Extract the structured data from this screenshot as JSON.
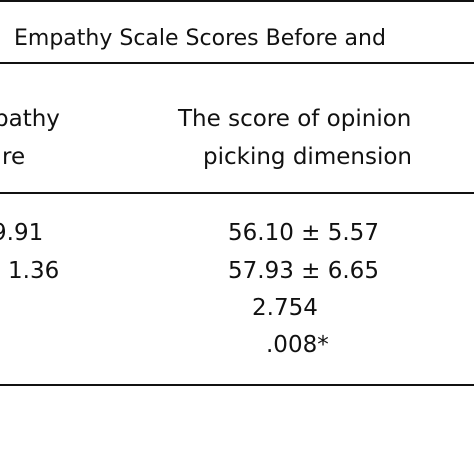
{
  "title": "Empathy Scale Scores Before and",
  "table": {
    "left_column": {
      "header": [
        "pathy",
        "re"
      ],
      "values": [
        "9.91",
        "1.36"
      ]
    },
    "right_column": {
      "header": [
        "The score of opinion",
        "picking dimension"
      ],
      "values": [
        "56.10 ± 5.57",
        "57.93 ± 6.65",
        "2.754",
        ".008*"
      ]
    }
  }
}
